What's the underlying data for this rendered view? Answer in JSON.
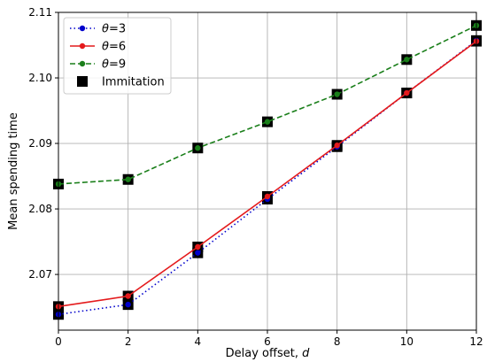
{
  "chart_data": {
    "type": "line",
    "xlabel_text": "Delay offset, ",
    "xlabel_var": "d",
    "ylabel": "Mean spending time",
    "xlim": [
      0,
      12
    ],
    "ylim": [
      2.0615,
      2.11
    ],
    "xticks": [
      0,
      2,
      4,
      6,
      8,
      10,
      12
    ],
    "yticks": [
      2.07,
      2.08,
      2.09,
      2.1,
      2.11
    ],
    "ytick_labels": [
      "2.07",
      "2.08",
      "2.09",
      "2.10",
      "2.11"
    ],
    "grid": true,
    "legend_position": "top-left",
    "x": [
      0,
      2,
      4,
      6,
      8,
      10,
      12
    ],
    "series": [
      {
        "name_sym": "θ",
        "name_rest": "=3",
        "color": "#0000cc",
        "style": "dotted",
        "values": [
          2.0639,
          2.0654,
          2.0733,
          2.0815,
          2.0895,
          2.0977,
          2.1057
        ]
      },
      {
        "name_sym": "θ",
        "name_rest": "=6",
        "color": "#e41a1c",
        "style": "solid",
        "values": [
          2.0651,
          2.0667,
          2.0742,
          2.0819,
          2.0897,
          2.0977,
          2.1056
        ]
      },
      {
        "name_sym": "θ",
        "name_rest": "=9",
        "color": "#1a7f1a",
        "style": "dashed",
        "values": [
          2.0838,
          2.0845,
          2.0893,
          2.0933,
          2.0975,
          2.1028,
          2.108
        ]
      }
    ],
    "immitation": {
      "name": "Immitation",
      "color": "#000000",
      "series": [
        [
          2.0639,
          2.0654,
          2.0733,
          2.0815,
          2.0895,
          2.0977,
          2.1057
        ],
        [
          2.0651,
          2.0667,
          2.0742,
          2.0819,
          2.0897,
          2.0977,
          2.1056
        ],
        [
          2.0838,
          2.0845,
          2.0893,
          2.0933,
          2.0975,
          2.1028,
          2.108
        ]
      ]
    }
  }
}
